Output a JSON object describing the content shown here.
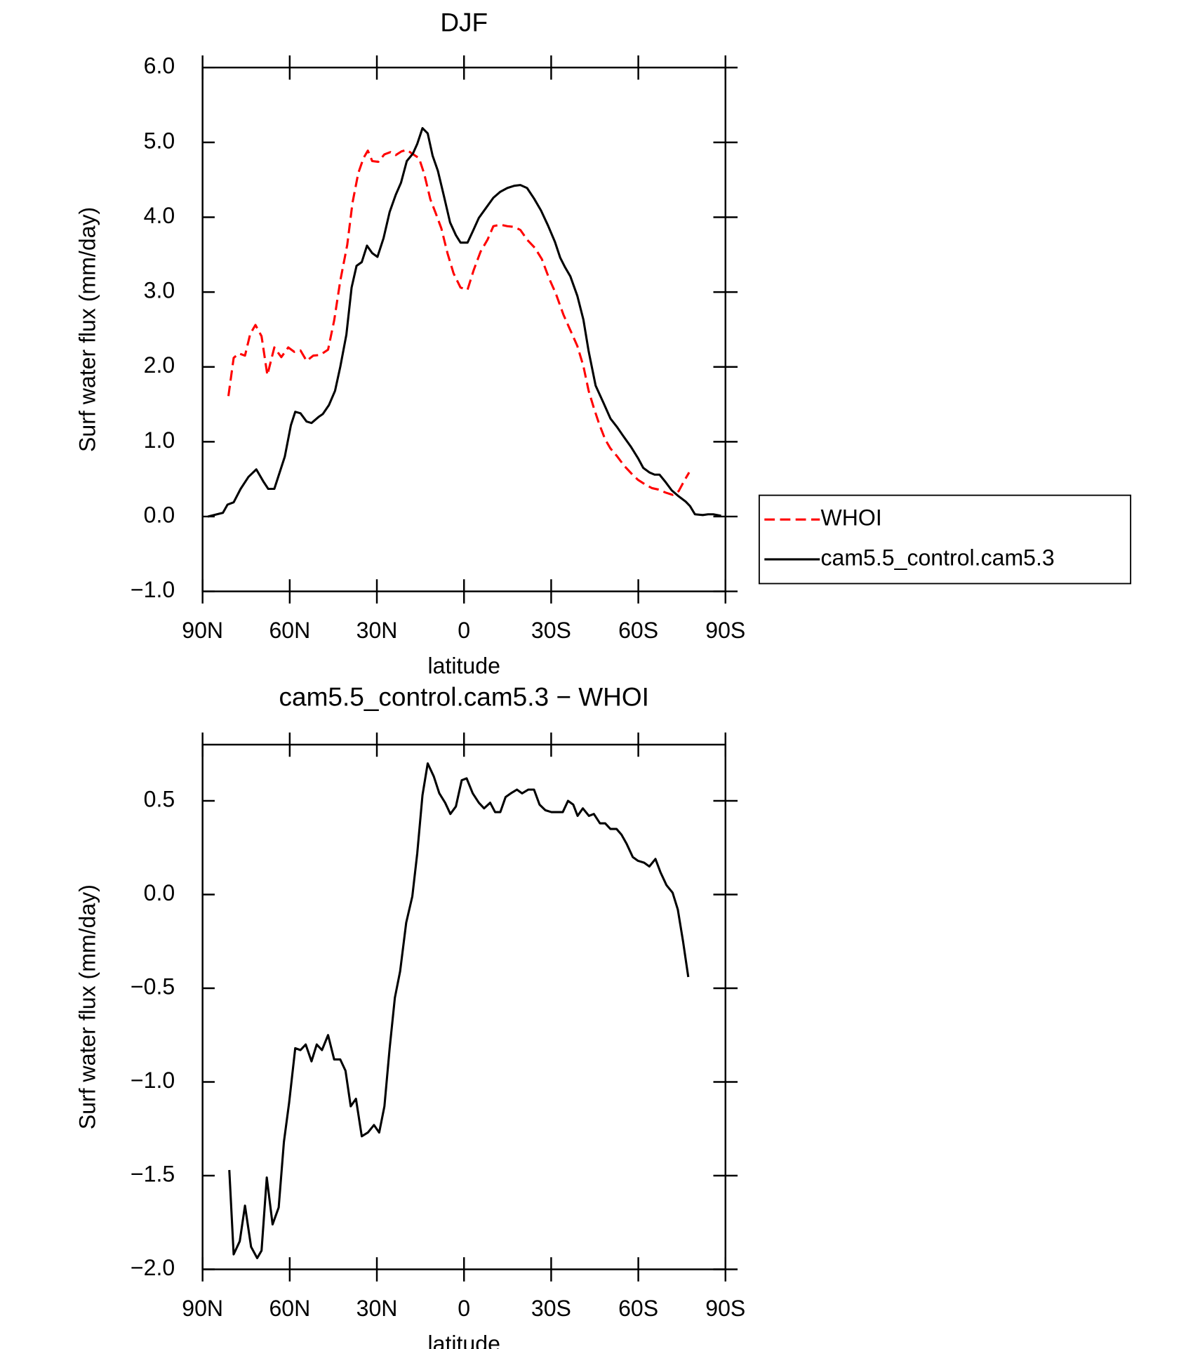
{
  "chart_data": [
    {
      "type": "line",
      "title": "DJF",
      "y_label": "Surf water flux (mm/day)",
      "x_label": "latitude",
      "xlim": [
        90,
        -90
      ],
      "xticks": [
        {
          "value": 90,
          "label": "90N"
        },
        {
          "value": 60,
          "label": "60N"
        },
        {
          "value": 30,
          "label": "30N"
        },
        0,
        {
          "value": -30,
          "label": "30S"
        },
        {
          "value": -60,
          "label": "60S"
        },
        {
          "value": -90,
          "label": "90S"
        }
      ],
      "ylim": [
        -1.0,
        6.0
      ],
      "yticks": [
        {
          "value": -1,
          "label": "−1.0"
        },
        {
          "value": 0,
          "label": "0.0"
        },
        {
          "value": 1,
          "label": "1.0"
        },
        {
          "value": 2,
          "label": "2.0"
        },
        {
          "value": 3,
          "label": "3.0"
        },
        {
          "value": 4,
          "label": "4.0"
        },
        {
          "value": 5,
          "label": "5.0"
        },
        {
          "value": 6,
          "label": "6.0"
        }
      ],
      "legend": "outside-right",
      "series": [
        {
          "name": "WHOI",
          "color": "#ff0000",
          "line_style": "dashed",
          "x": [
            81.1,
            79.3,
            77.5,
            75.4,
            73.6,
            71.8,
            69.7,
            67.7,
            65.3,
            62.9,
            60.5,
            58.4,
            56.3,
            54.2,
            51.9,
            49.5,
            46.8,
            44.7,
            42.6,
            40.2,
            38.4,
            36.4,
            34.6,
            33.1,
            31.6,
            29.5,
            27.4,
            25.3,
            23.5,
            21.5,
            19.7,
            17.9,
            15.5,
            13.7,
            11.6,
            9.8,
            7.8,
            5.7,
            3.6,
            1.2,
            -1.2,
            -3.3,
            -5.7,
            -8.1,
            -10.1,
            -12.5,
            -14.9,
            -17.3,
            -19.4,
            -21.7,
            -24.4,
            -26.8,
            -29.2,
            -31.6,
            -34.2,
            -36.6,
            -39,
            -41.1,
            -42.9,
            -44.7,
            -46.5,
            -48.6,
            -50.4,
            -52.8,
            -55.1,
            -57.5,
            -59.9,
            -62.3,
            -64.7,
            -67,
            -69.4,
            -71.8,
            -73.9,
            -75.7,
            -77.5
          ],
          "values": [
            1.61,
            2.12,
            2.18,
            2.15,
            2.44,
            2.56,
            2.41,
            1.89,
            2.26,
            2.13,
            2.26,
            2.2,
            2.22,
            2.08,
            2.15,
            2.16,
            2.23,
            2.62,
            3.15,
            3.63,
            4.19,
            4.59,
            4.79,
            4.89,
            4.75,
            4.74,
            4.84,
            4.87,
            4.83,
            4.88,
            4.9,
            4.85,
            4.79,
            4.58,
            4.24,
            4.06,
            3.85,
            3.52,
            3.25,
            3.06,
            3.03,
            3.29,
            3.54,
            3.7,
            3.88,
            3.9,
            3.88,
            3.87,
            3.83,
            3.7,
            3.59,
            3.44,
            3.19,
            2.98,
            2.7,
            2.49,
            2.28,
            2.01,
            1.68,
            1.45,
            1.24,
            1.03,
            0.91,
            0.8,
            0.68,
            0.58,
            0.49,
            0.43,
            0.38,
            0.36,
            0.32,
            0.29,
            0.34,
            0.47,
            0.59
          ]
        },
        {
          "name": "cam5.5_control.cam5.3",
          "color": "#000000",
          "line_style": "solid",
          "x": [
            88.2,
            83,
            81.4,
            79.3,
            76.9,
            74.2,
            71.5,
            69.1,
            67.4,
            65.3,
            61.7,
            59.6,
            58.1,
            56.3,
            54.2,
            52.5,
            50.1,
            48.6,
            46.5,
            44.4,
            42.6,
            40.5,
            38.7,
            37,
            35.2,
            33.4,
            31.6,
            29.8,
            27.7,
            25.6,
            23.5,
            21.7,
            19.7,
            17.6,
            16.1,
            14.3,
            12.5,
            10.8,
            9,
            6.9,
            4.8,
            2.8,
            1.2,
            -1.2,
            -3,
            -5.1,
            -7.5,
            -10.1,
            -12.5,
            -14.9,
            -17.3,
            -19.4,
            -21.7,
            -24.1,
            -26.5,
            -28.9,
            -31.3,
            -33.1,
            -34.8,
            -36.6,
            -39,
            -41.1,
            -42.9,
            -45.3,
            -48,
            -50.4,
            -52.8,
            -55.1,
            -57.5,
            -59.9,
            -61.7,
            -63.8,
            -65.6,
            -67.3,
            -69.4,
            -71.5,
            -73.9,
            -76.3,
            -77.8,
            -79.5,
            -82.2,
            -84,
            -85.8,
            -88.5
          ],
          "values": [
            0.0,
            0.05,
            0.16,
            0.19,
            0.37,
            0.53,
            0.63,
            0.47,
            0.37,
            0.37,
            0.8,
            1.22,
            1.4,
            1.38,
            1.27,
            1.25,
            1.33,
            1.37,
            1.49,
            1.68,
            2.0,
            2.43,
            3.06,
            3.35,
            3.4,
            3.62,
            3.52,
            3.47,
            3.72,
            4.07,
            4.3,
            4.46,
            4.75,
            4.85,
            4.98,
            5.19,
            5.12,
            4.82,
            4.62,
            4.28,
            3.93,
            3.76,
            3.66,
            3.66,
            3.81,
            3.99,
            4.12,
            4.26,
            4.34,
            4.39,
            4.42,
            4.43,
            4.39,
            4.25,
            4.09,
            3.89,
            3.67,
            3.46,
            3.33,
            3.21,
            2.95,
            2.63,
            2.21,
            1.75,
            1.52,
            1.31,
            1.19,
            1.06,
            0.93,
            0.78,
            0.65,
            0.59,
            0.56,
            0.56,
            0.46,
            0.35,
            0.27,
            0.2,
            0.14,
            0.03,
            0.02,
            0.03,
            0.03,
            0.01
          ]
        }
      ]
    },
    {
      "type": "line",
      "title": "cam5.5_control.cam5.3 − WHOI",
      "y_label": "Surf water flux (mm/day)",
      "x_label": "latitude",
      "xlim": [
        90,
        -90
      ],
      "xticks": [
        {
          "value": 90,
          "label": "90N"
        },
        {
          "value": 60,
          "label": "60N"
        },
        {
          "value": 30,
          "label": "30N"
        },
        0,
        {
          "value": -30,
          "label": "30S"
        },
        {
          "value": -60,
          "label": "60S"
        },
        {
          "value": -90,
          "label": "90S"
        }
      ],
      "ylim": [
        -2.0,
        0.8
      ],
      "yticks": [
        {
          "value": -2,
          "label": "−2.0"
        },
        {
          "value": -1.5,
          "label": "−1.5"
        },
        {
          "value": -1,
          "label": "−1.0"
        },
        {
          "value": -0.5,
          "label": "−0.5"
        },
        {
          "value": 0,
          "label": "0.0"
        },
        {
          "value": 0.5,
          "label": "0.5"
        }
      ],
      "series": [
        {
          "color": "#000000",
          "line_style": "solid",
          "x": [
            80.8,
            79.3,
            77.2,
            75.4,
            73.3,
            71.2,
            69.7,
            67.9,
            65.9,
            63.8,
            62,
            60.2,
            58.1,
            56.3,
            54.5,
            52.5,
            50.7,
            48.9,
            46.8,
            44.7,
            42.6,
            40.8,
            39,
            37.2,
            35.2,
            33.1,
            31,
            29.2,
            27.4,
            25.6,
            23.8,
            22,
            19.9,
            17.8,
            16.1,
            14.3,
            12.5,
            10.4,
            8.5,
            6.5,
            4.7,
            2.8,
            0.8,
            -0.9,
            -3,
            -5.1,
            -6.9,
            -9,
            -10.7,
            -12.5,
            -14.3,
            -16.1,
            -18.2,
            -20,
            -22.1,
            -24.1,
            -26,
            -28,
            -30.1,
            -32.2,
            -34,
            -35.8,
            -37.6,
            -39.1,
            -40.9,
            -43,
            -44.7,
            -46.8,
            -48.6,
            -50.4,
            -52.5,
            -54.2,
            -56,
            -58.1,
            -59.9,
            -62,
            -63.8,
            -65.9,
            -67.6,
            -69.7,
            -71.8,
            -73.6,
            -75.4,
            -77.2
          ],
          "values": [
            -1.47,
            -1.92,
            -1.85,
            -1.66,
            -1.88,
            -1.94,
            -1.9,
            -1.51,
            -1.76,
            -1.67,
            -1.32,
            -1.11,
            -0.82,
            -0.83,
            -0.8,
            -0.89,
            -0.8,
            -0.83,
            -0.75,
            -0.88,
            -0.88,
            -0.94,
            -1.13,
            -1.09,
            -1.29,
            -1.27,
            -1.23,
            -1.27,
            -1.13,
            -0.82,
            -0.55,
            -0.41,
            -0.15,
            -0.01,
            0.22,
            0.53,
            0.7,
            0.63,
            0.54,
            0.49,
            0.43,
            0.47,
            0.61,
            0.62,
            0.54,
            0.49,
            0.46,
            0.49,
            0.44,
            0.44,
            0.52,
            0.54,
            0.56,
            0.54,
            0.56,
            0.56,
            0.48,
            0.45,
            0.44,
            0.44,
            0.44,
            0.5,
            0.48,
            0.42,
            0.46,
            0.42,
            0.43,
            0.38,
            0.38,
            0.35,
            0.35,
            0.32,
            0.27,
            0.2,
            0.18,
            0.17,
            0.15,
            0.19,
            0.12,
            0.05,
            0.01,
            -0.08,
            -0.25,
            -0.44
          ]
        }
      ]
    }
  ]
}
